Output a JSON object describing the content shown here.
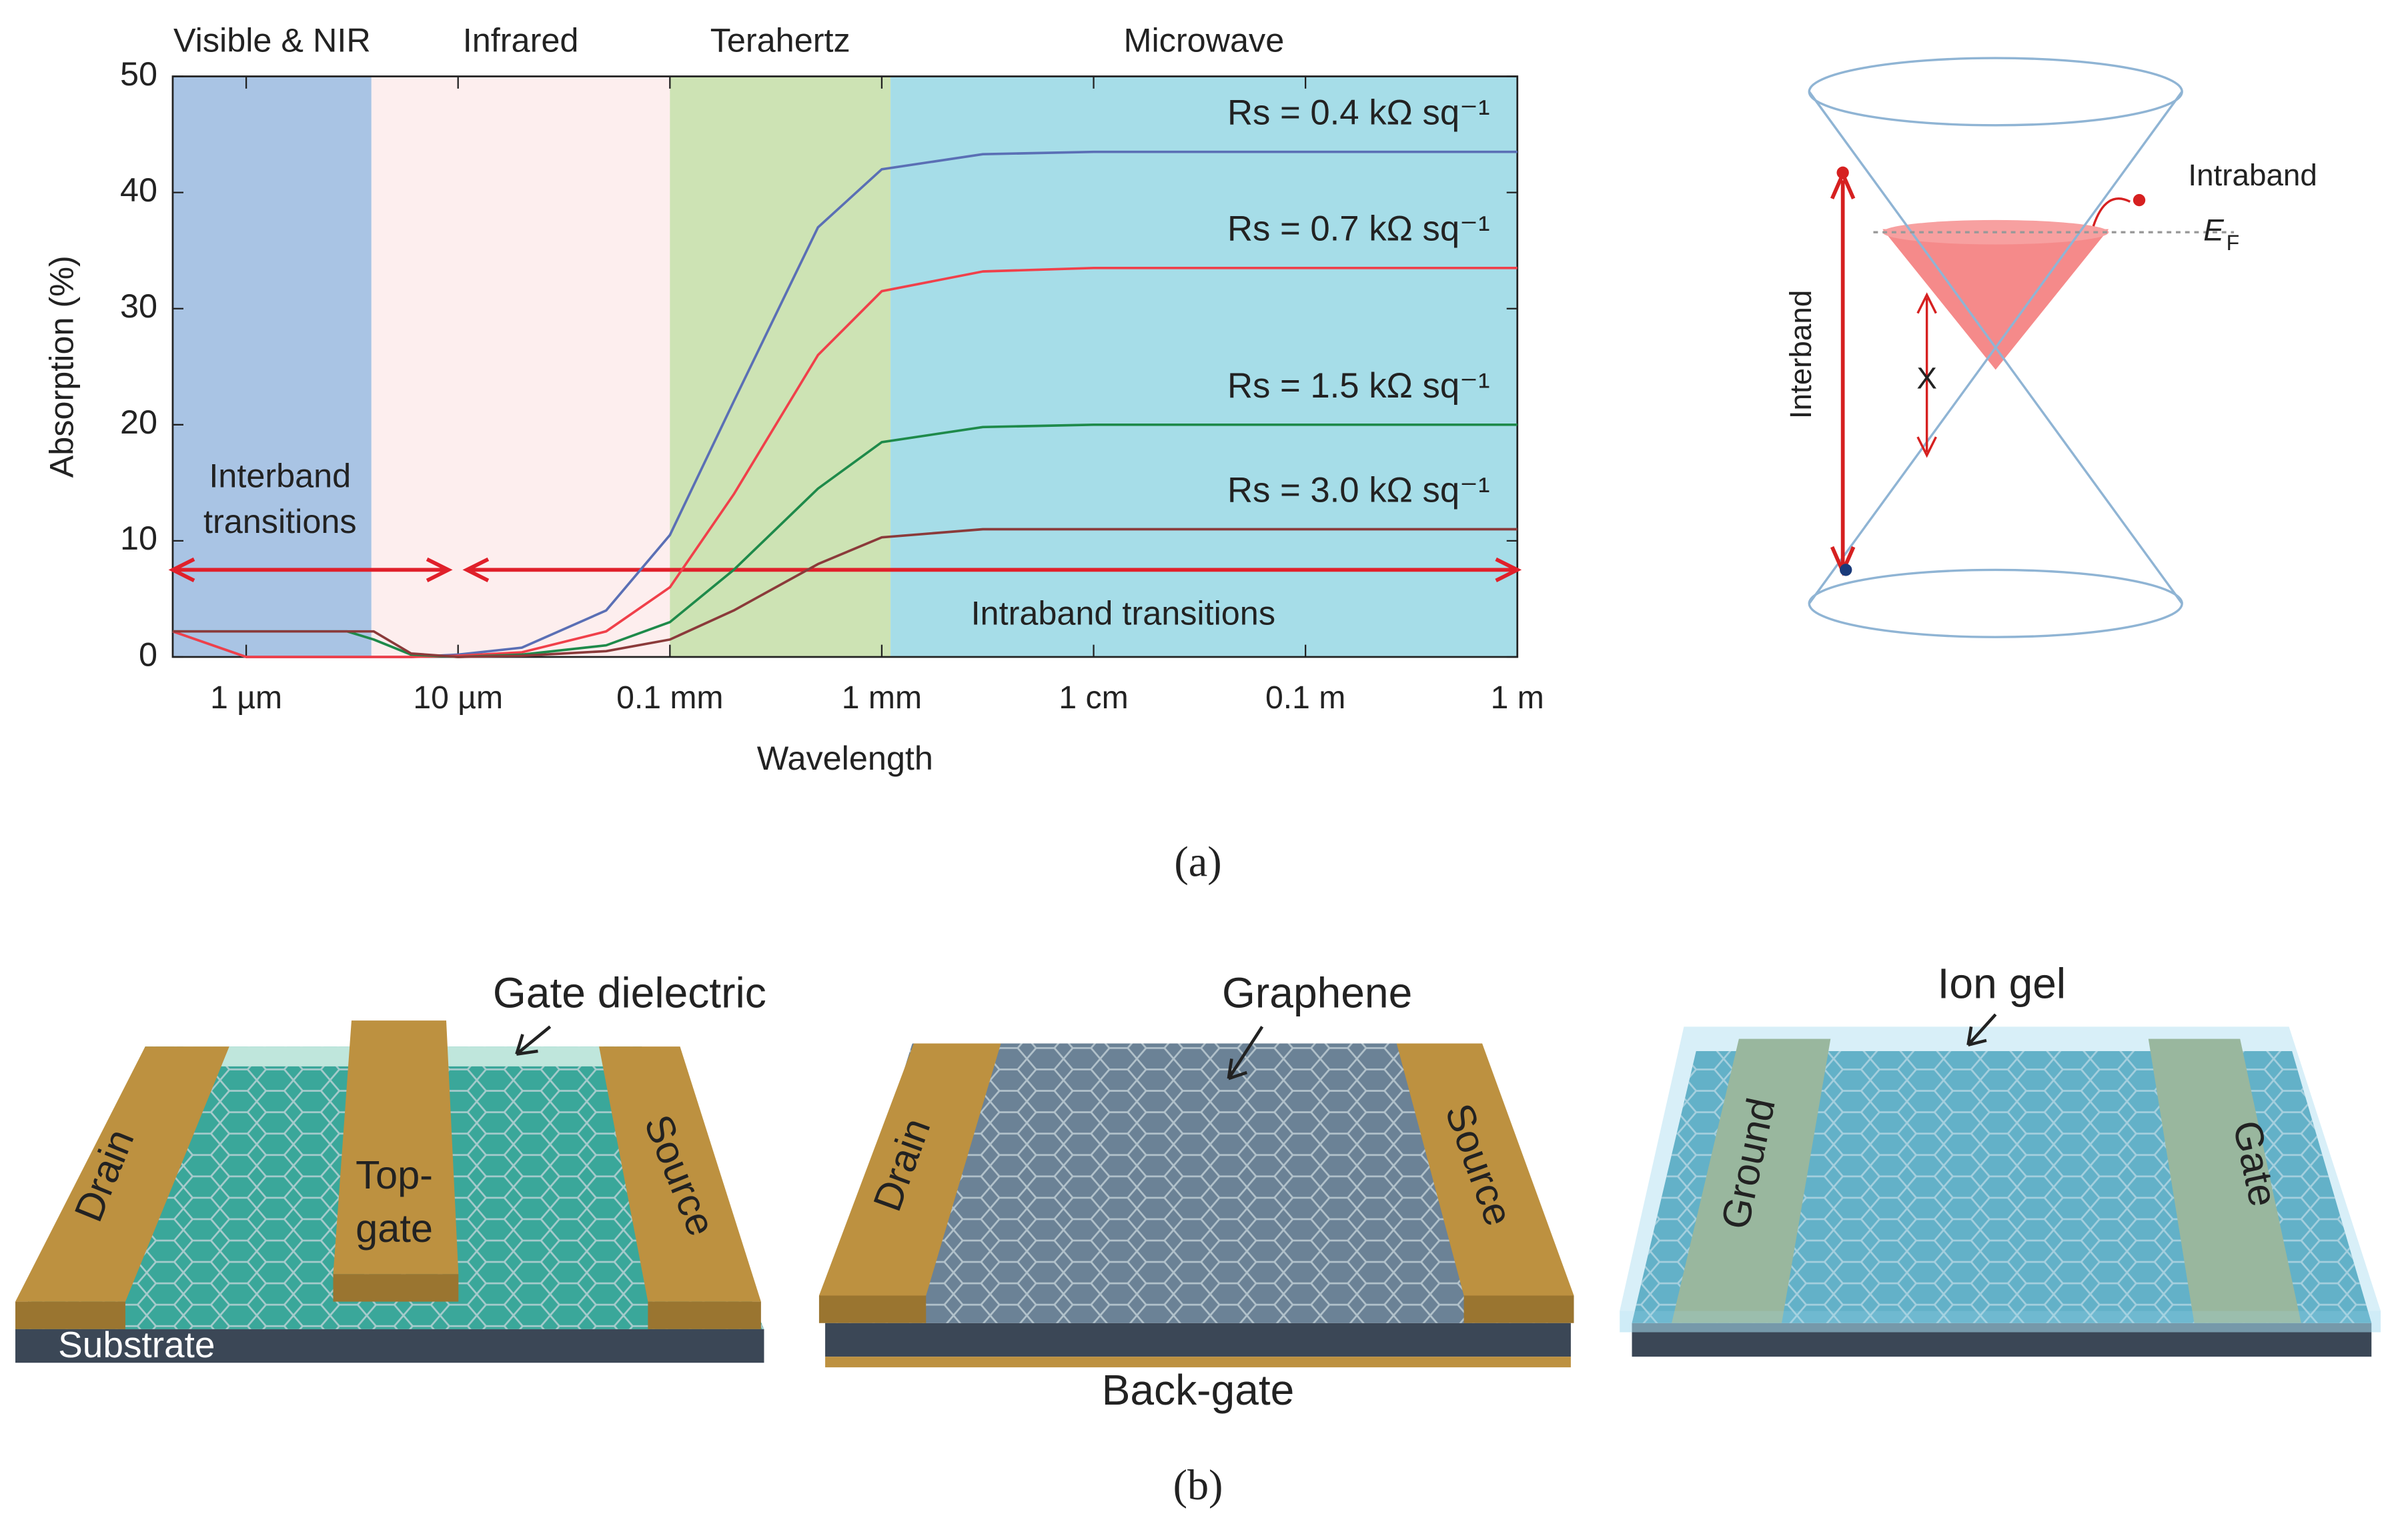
{
  "chart_data": {
    "type": "line",
    "x_label": "Wavelength",
    "y_label": "Absorption (%)",
    "log_x": true,
    "xlim": [
      4.5e-07,
      1
    ],
    "ylim": [
      0,
      50
    ],
    "yticks": [
      0,
      10,
      20,
      30,
      40,
      50
    ],
    "xticks": [
      {
        "value": 1e-06,
        "label": "1 µm"
      },
      {
        "value": 1e-05,
        "label": "10 µm"
      },
      {
        "value": 0.0001,
        "label": "0.1 mm"
      },
      {
        "value": 0.001,
        "label": "1 mm"
      },
      {
        "value": 0.01,
        "label": "1 cm"
      },
      {
        "value": 0.1,
        "label": "0.1 m"
      },
      {
        "value": 1,
        "label": "1 m"
      }
    ],
    "regions": [
      {
        "name": "Visible & NIR",
        "start": 4.5e-07,
        "end": 3.9e-06,
        "color": "#a9c4e4"
      },
      {
        "name": "Infrared",
        "start": 3.9e-06,
        "end": 0.0001,
        "color": "#fdeeee"
      },
      {
        "name": "Terahertz",
        "start": 0.0001,
        "end": 0.0011,
        "color": "#cde3b4"
      },
      {
        "name": "Microwave",
        "start": 0.0011,
        "end": 1,
        "color": "#a6dde8"
      }
    ],
    "x": [
      4.5e-07,
      1e-06,
      2e-06,
      3e-06,
      4e-06,
      6e-06,
      1e-05,
      2e-05,
      5e-05,
      0.0001,
      0.0002,
      0.0005,
      0.001,
      0.003,
      0.01,
      0.1,
      1
    ],
    "series": [
      {
        "name": "Rs = 0.4 kΩ sq⁻¹",
        "color": "#5a6fb5",
        "values": [
          2.2,
          0,
          0,
          0,
          0,
          0,
          0.2,
          0.8,
          4,
          10.5,
          22,
          37,
          42,
          43.3,
          43.5,
          43.5,
          43.5
        ]
      },
      {
        "name": "Rs = 0.7 kΩ sq⁻¹",
        "color": "#f0404a",
        "values": [
          2.2,
          0,
          0,
          0,
          0,
          0,
          0.1,
          0.4,
          2.2,
          6,
          14,
          26,
          31.5,
          33.2,
          33.5,
          33.5,
          33.5
        ]
      },
      {
        "name": "Rs = 1.5 kΩ sq⁻¹",
        "color": "#1e8a4a",
        "values": [
          2.2,
          2.2,
          2.2,
          2.2,
          1.5,
          0.2,
          0,
          0.2,
          1,
          3,
          7.5,
          14.5,
          18.5,
          19.8,
          20,
          20,
          20
        ]
      },
      {
        "name": "Rs = 3.0 kΩ sq⁻¹",
        "color": "#8b3a3a",
        "values": [
          2.2,
          2.2,
          2.2,
          2.2,
          2.2,
          0.3,
          0,
          0.1,
          0.5,
          1.5,
          4,
          8,
          10.3,
          11,
          11,
          11,
          11
        ]
      }
    ],
    "arrows": [
      {
        "label": [
          "Interband",
          "transitions"
        ],
        "from": 4.5e-07,
        "to": 9e-06,
        "y": 7.5
      },
      {
        "label": [
          "Intraband transitions"
        ],
        "from": 1.1e-05,
        "to": 1,
        "y": 7.5
      }
    ]
  },
  "band_diagram": {
    "intraband": "Intraband",
    "fermi_symbol": "E",
    "fermi_subscript": "F",
    "interband": "Interband",
    "forbidden": "X"
  },
  "captions": {
    "a": "(a)",
    "b": "(b)"
  },
  "devices": [
    {
      "dielectric": "Gate dielectric",
      "drain": "Drain",
      "gate_top": "Top-",
      "gate_bottom": "gate",
      "source": "Source",
      "substrate": "Substrate"
    },
    {
      "graphene": "Graphene",
      "drain": "Drain",
      "source": "Source",
      "back_gate": "Back-gate"
    },
    {
      "ion_gel": "Ion gel",
      "ground": "Ground",
      "gate": "Gate"
    }
  ]
}
